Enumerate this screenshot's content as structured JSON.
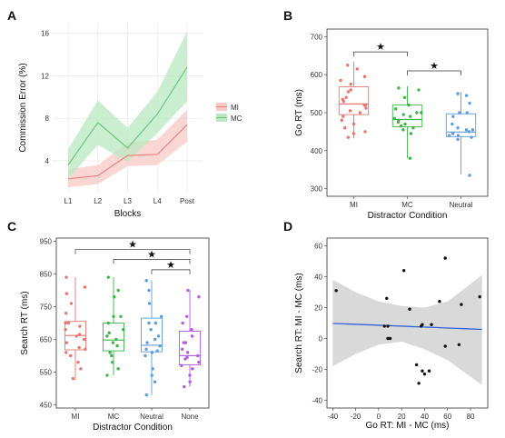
{
  "chart_data": [
    {
      "panel": "A",
      "type": "line",
      "xlabel": "Blocks",
      "ylabel": "Commission Error (%)",
      "categories": [
        "L1",
        "L2",
        "L3",
        "L4",
        "Post"
      ],
      "ylim": [
        1,
        17
      ],
      "yticks": [
        "4",
        "8",
        "12",
        "16"
      ],
      "ytick_values": [
        4,
        8,
        12,
        16
      ],
      "legend_position": "right",
      "series": [
        {
          "name": "MI",
          "color": "#f08080",
          "fill": "#f9c9c5",
          "values": [
            2.3,
            2.6,
            4.5,
            4.6,
            7.4
          ],
          "lower": [
            1.5,
            1.8,
            3.5,
            3.6,
            5.8
          ],
          "upper": [
            3.2,
            3.6,
            5.7,
            6.0,
            8.8
          ]
        },
        {
          "name": "MC",
          "color": "#66c97a",
          "fill": "#b9e8c0",
          "values": [
            3.6,
            7.6,
            5.2,
            8.4,
            12.8
          ],
          "lower": [
            2.3,
            5.5,
            3.9,
            6.6,
            9.6
          ],
          "upper": [
            5.1,
            9.7,
            7.1,
            10.5,
            16.2
          ]
        }
      ]
    },
    {
      "panel": "B",
      "type": "box",
      "xlabel": "Distractor Condition",
      "ylabel": "Go RT (ms)",
      "categories": [
        "MI",
        "MC",
        "Neutral"
      ],
      "ylim": [
        280,
        720
      ],
      "yticks": [
        "300",
        "400",
        "500",
        "600",
        "700"
      ],
      "ytick_values": [
        300,
        400,
        500,
        600,
        700
      ],
      "colors": [
        "#e8766f",
        "#3cb54a",
        "#5a9de0"
      ],
      "boxes": [
        {
          "q1": 495,
          "median": 523,
          "q3": 568,
          "lo": 432,
          "hi": 635
        },
        {
          "q1": 463,
          "median": 482,
          "q3": 520,
          "lo": 380,
          "hi": 570
        },
        {
          "q1": 437,
          "median": 449,
          "q3": 497,
          "lo": 338,
          "hi": 555
        }
      ],
      "points": [
        [
          595,
          520,
          480,
          560,
          450,
          530,
          505,
          470,
          615,
          540,
          490,
          512,
          575,
          460,
          445,
          625,
          535,
          500,
          555,
          435,
          585,
          520
        ],
        [
          565,
          500,
          470,
          480,
          520,
          455,
          460,
          490,
          510,
          475,
          540,
          485,
          500,
          495,
          445,
          380,
          560,
          465
        ],
        [
          550,
          500,
          460,
          450,
          440,
          430,
          445,
          470,
          455,
          440,
          490,
          500,
          335,
          455,
          435,
          525,
          545
        ]
      ],
      "significance": [
        {
          "from": 0,
          "to": 1,
          "y": 660,
          "label": "★"
        },
        {
          "from": 1,
          "to": 2,
          "y": 610,
          "label": "★"
        }
      ]
    },
    {
      "panel": "C",
      "type": "box",
      "xlabel": "Distractor Condition",
      "ylabel": "Search RT (ms)",
      "categories": [
        "MI",
        "MC",
        "Neutral",
        "None"
      ],
      "ylim": [
        440,
        960
      ],
      "yticks": [
        "450",
        "550",
        "650",
        "750",
        "850",
        "950"
      ],
      "ytick_values": [
        450,
        550,
        650,
        750,
        850,
        950
      ],
      "colors": [
        "#e8766f",
        "#3cb54a",
        "#5a9de0",
        "#b45ce6"
      ],
      "boxes": [
        {
          "q1": 618,
          "median": 662,
          "q3": 705,
          "lo": 525,
          "hi": 840
        },
        {
          "q1": 615,
          "median": 648,
          "q3": 700,
          "lo": 540,
          "hi": 840
        },
        {
          "q1": 612,
          "median": 632,
          "q3": 715,
          "lo": 480,
          "hi": 830
        },
        {
          "q1": 572,
          "median": 600,
          "q3": 675,
          "lo": 505,
          "hi": 800
        }
      ],
      "points": [
        [
          840,
          790,
          730,
          700,
          680,
          660,
          650,
          640,
          620,
          600,
          580,
          560,
          530,
          700,
          760,
          690,
          610,
          810,
          665,
          625
        ],
        [
          840,
          800,
          780,
          720,
          700,
          680,
          660,
          650,
          640,
          630,
          610,
          600,
          580,
          560,
          540,
          720,
          670
        ],
        [
          830,
          800,
          760,
          720,
          700,
          680,
          660,
          640,
          630,
          620,
          610,
          600,
          560,
          540,
          520,
          480,
          650,
          615,
          700
        ],
        [
          800,
          780,
          720,
          700,
          680,
          660,
          640,
          620,
          600,
          590,
          580,
          560,
          540,
          520,
          505,
          610,
          640,
          570,
          595
        ]
      ],
      "significance": [
        {
          "from": 0,
          "to": 3,
          "y": 925,
          "label": "★"
        },
        {
          "from": 1,
          "to": 3,
          "y": 895,
          "label": "★"
        },
        {
          "from": 2,
          "to": 3,
          "y": 863,
          "label": "★"
        }
      ]
    },
    {
      "panel": "D",
      "type": "scatter",
      "xlabel": "Go RT: MI - MC (ms)",
      "ylabel": "Search RT: MI - MC (ms)",
      "xlim": [
        -45,
        95
      ],
      "ylim": [
        -45,
        65
      ],
      "xticks": [
        "-40",
        "-20",
        "0",
        "20",
        "40",
        "60",
        "80"
      ],
      "xtick_values": [
        -40,
        -20,
        0,
        20,
        40,
        60,
        80
      ],
      "yticks": [
        "-40",
        "-20",
        "0",
        "20",
        "40",
        "60"
      ],
      "ytick_values": [
        -40,
        -20,
        0,
        20,
        40,
        60
      ],
      "points": [
        [
          -37,
          31
        ],
        [
          5,
          8
        ],
        [
          7,
          26
        ],
        [
          8,
          8
        ],
        [
          8,
          0
        ],
        [
          10,
          0
        ],
        [
          22,
          44
        ],
        [
          27,
          19
        ],
        [
          33,
          -17
        ],
        [
          35,
          -29
        ],
        [
          37,
          8
        ],
        [
          38,
          -21
        ],
        [
          38,
          9
        ],
        [
          40,
          -23
        ],
        [
          44,
          -21
        ],
        [
          46,
          9
        ],
        [
          53,
          24
        ],
        [
          58,
          52
        ],
        [
          58,
          -5
        ],
        [
          70,
          -4
        ],
        [
          72,
          22
        ],
        [
          88,
          27
        ]
      ],
      "fit": {
        "x": [
          -40,
          90
        ],
        "y": [
          9.8,
          5.9
        ],
        "color": "#3060e0"
      },
      "band": {
        "x": [
          -40,
          -20,
          0,
          20,
          40,
          60,
          90
        ],
        "lower": [
          -18,
          -10,
          -4,
          -2,
          -7,
          -14,
          -30
        ],
        "upper": [
          38,
          30,
          24,
          21,
          20,
          24,
          41
        ]
      }
    }
  ]
}
